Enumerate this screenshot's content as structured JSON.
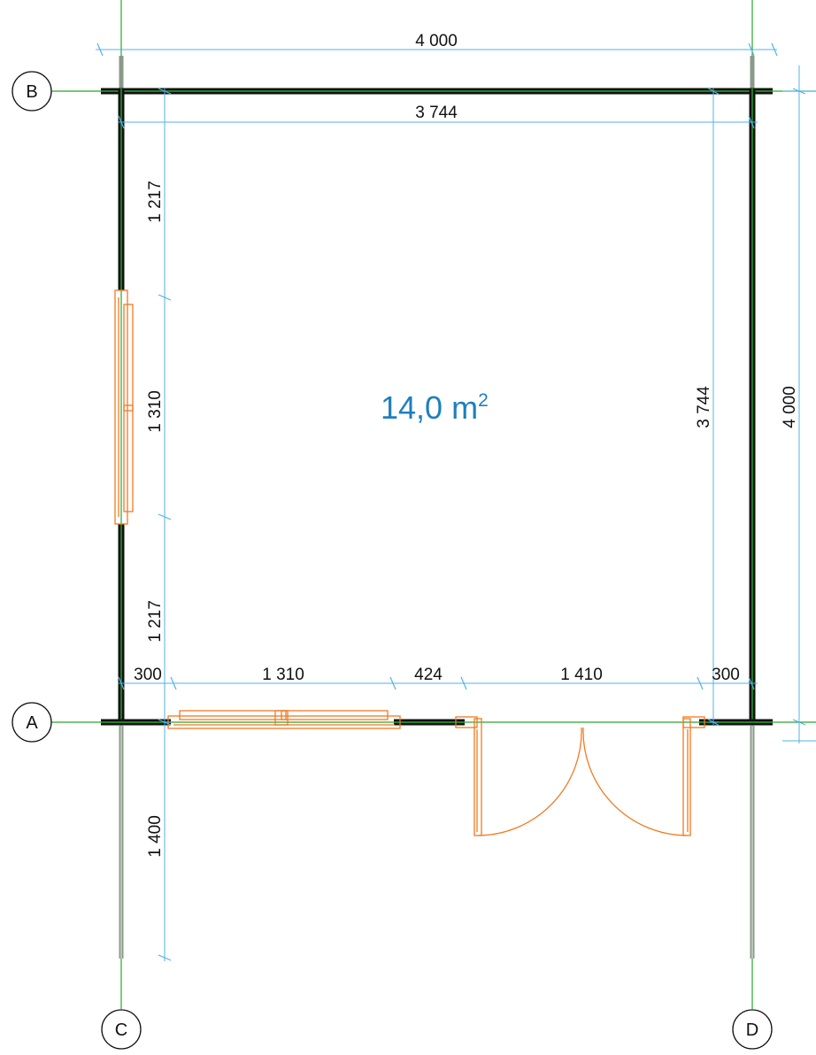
{
  "colors": {
    "dimension": "#4fb3e8",
    "grid": "#2aa52a",
    "wall": "#111111",
    "openings": "#f07a20",
    "area_text": "#1e7fbf"
  },
  "area": {
    "value": "14,0 m",
    "superscript": "2"
  },
  "grid_axes": {
    "a": "A",
    "b": "B",
    "c": "C",
    "d": "D"
  },
  "dimensions": {
    "overall_width": "4 000",
    "inner_width": "3 744",
    "overall_height": "4 000",
    "inner_height": "3 744",
    "left_segment_top": "1 217",
    "left_window": "1 310",
    "left_segment_bottom": "1 217",
    "front_offset_left": "300",
    "front_window": "1 310",
    "front_wall_gap": "424",
    "front_door": "1 410",
    "front_offset_right": "300",
    "terrace_depth": "1 400"
  }
}
